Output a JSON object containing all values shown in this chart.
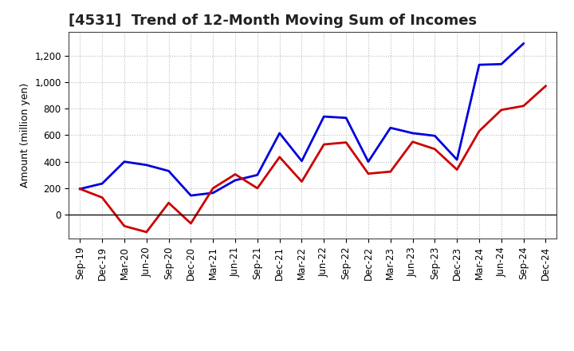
{
  "title": "[4531]  Trend of 12-Month Moving Sum of Incomes",
  "ylabel": "Amount (million yen)",
  "x_labels": [
    "Sep-19",
    "Dec-19",
    "Mar-20",
    "Jun-20",
    "Sep-20",
    "Dec-20",
    "Mar-21",
    "Jun-21",
    "Sep-21",
    "Dec-21",
    "Mar-22",
    "Jun-22",
    "Sep-22",
    "Dec-22",
    "Mar-23",
    "Jun-23",
    "Sep-23",
    "Dec-23",
    "Mar-24",
    "Jun-24",
    "Sep-24",
    "Dec-24"
  ],
  "ordinary_income": [
    195,
    235,
    400,
    375,
    330,
    145,
    165,
    260,
    300,
    615,
    405,
    740,
    730,
    400,
    655,
    615,
    595,
    415,
    1130,
    1135,
    1290,
    null
  ],
  "net_income": [
    195,
    130,
    -85,
    -130,
    90,
    -65,
    200,
    305,
    200,
    435,
    250,
    530,
    545,
    310,
    325,
    550,
    495,
    340,
    630,
    790,
    820,
    970
  ],
  "ordinary_color": "#0000dd",
  "net_color": "#cc0000",
  "ylim_min": -180,
  "ylim_max": 1380,
  "yticks": [
    0,
    200,
    400,
    600,
    800,
    1000,
    1200
  ],
  "ytick_labels": [
    "0",
    "200",
    "400",
    "600",
    "800",
    "1,000",
    "1,200"
  ],
  "background_color": "#ffffff",
  "grid_color": "#bbbbbb",
  "line_width": 2.0,
  "title_fontsize": 13,
  "tick_fontsize": 8.5,
  "ylabel_fontsize": 9
}
